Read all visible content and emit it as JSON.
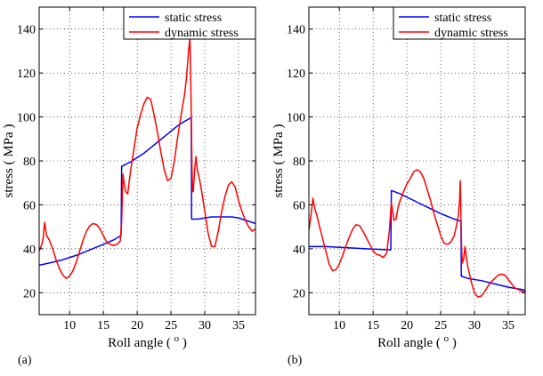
{
  "panels": [
    {
      "label": "(a)"
    },
    {
      "label": "(b)"
    }
  ],
  "chart_data": [
    {
      "type": "line",
      "panel": "(a)",
      "xlabel": "Roll angle ( o )",
      "ylabel": "stress ( MPa )",
      "xlim": [
        5.5,
        37.5
      ],
      "ylim": [
        10,
        150
      ],
      "xticks": [
        10,
        15,
        20,
        25,
        30,
        35
      ],
      "yticks": [
        20,
        40,
        60,
        80,
        100,
        120,
        140
      ],
      "grid": true,
      "legend": "top-right",
      "series": [
        {
          "name": "static stress",
          "color": "#0000ff",
          "x": [
            5.5,
            7,
            9,
            11,
            13,
            15,
            16.5,
            17.6,
            17.62,
            17.7,
            19,
            20,
            21,
            22,
            23,
            24,
            25,
            26,
            27,
            27.9,
            28.0,
            28.05,
            29,
            30,
            31,
            32,
            33,
            34,
            35,
            36,
            37,
            37.5
          ],
          "y": [
            32.5,
            33.5,
            35,
            37,
            39.5,
            42,
            44,
            46,
            46,
            77.5,
            79.5,
            81.5,
            83.5,
            86,
            88.5,
            91,
            93.5,
            96,
            98,
            99.5,
            99.5,
            53.5,
            53.5,
            54,
            54.5,
            54.5,
            54.5,
            54.5,
            54,
            53,
            52,
            51.5
          ]
        },
        {
          "name": "dynamic stress",
          "color": "#ff0000",
          "x": [
            5.5,
            5.9,
            6.1,
            6.3,
            6.6,
            7.0,
            7.5,
            8.0,
            8.5,
            9.0,
            9.5,
            10.0,
            10.5,
            11.0,
            11.5,
            12.0,
            12.5,
            13.0,
            13.5,
            14.0,
            14.5,
            15.0,
            15.5,
            16.0,
            16.5,
            17.0,
            17.5,
            17.7,
            17.9,
            18.1,
            18.3,
            18.6,
            19.0,
            19.5,
            20.0,
            20.5,
            21.0,
            21.5,
            22.0,
            22.5,
            23.0,
            23.5,
            24.0,
            24.5,
            25.0,
            25.5,
            26.0,
            26.5,
            27.0,
            27.3,
            27.6,
            27.8,
            27.9,
            28.0,
            28.1,
            28.2,
            28.3,
            28.5,
            28.7,
            28.9,
            29.2,
            29.5,
            30.0,
            30.5,
            31.0,
            31.5,
            32.0,
            32.5,
            33.0,
            33.5,
            34.0,
            34.5,
            35.0,
            35.5,
            36.0,
            36.5,
            37.0,
            37.5
          ],
          "y": [
            39,
            42,
            45,
            52,
            46,
            44,
            40,
            35,
            31,
            28,
            26.5,
            27.5,
            30,
            34,
            39,
            44,
            48,
            50.5,
            51.5,
            51,
            49,
            46,
            43,
            42,
            41.5,
            42,
            43.5,
            52,
            74,
            69,
            66,
            65,
            75,
            85,
            95,
            101,
            106,
            109,
            108,
            101,
            93,
            84,
            76,
            71,
            72,
            80,
            91,
            101,
            110,
            118,
            130,
            136,
            121,
            103,
            78,
            66,
            66,
            76,
            82,
            76,
            72,
            67,
            57,
            47,
            41,
            41,
            48,
            57,
            64,
            69,
            70.5,
            68,
            62,
            57,
            53,
            50,
            48,
            49
          ]
        }
      ]
    },
    {
      "type": "line",
      "panel": "(b)",
      "xlabel": "Roll angle ( o )",
      "ylabel": "stress ( MPa )",
      "xlim": [
        5.5,
        37.5
      ],
      "ylim": [
        10,
        150
      ],
      "xticks": [
        10,
        15,
        20,
        25,
        30,
        35
      ],
      "yticks": [
        20,
        40,
        60,
        80,
        100,
        120,
        140
      ],
      "grid": true,
      "legend": "top-right",
      "series": [
        {
          "name": "static stress",
          "color": "#0000ff",
          "x": [
            5.5,
            8,
            11,
            14,
            17.6,
            17.62,
            17.7,
            19,
            21,
            23,
            25,
            27,
            28.0,
            28.05,
            29,
            31,
            33,
            35,
            37,
            37.5
          ],
          "y": [
            41,
            41,
            40.5,
            40,
            39.5,
            39.5,
            66.5,
            65,
            62,
            59,
            56,
            53.5,
            52.5,
            27.5,
            26.5,
            25.5,
            24,
            22.5,
            21.5,
            21
          ]
        },
        {
          "name": "dynamic stress",
          "color": "#ff0000",
          "x": [
            5.5,
            5.8,
            6.1,
            6.4,
            6.7,
            7.0,
            7.5,
            8.0,
            8.5,
            9.0,
            9.5,
            10.0,
            10.5,
            11.0,
            11.5,
            12.0,
            12.5,
            13.0,
            13.5,
            14.0,
            14.5,
            15.0,
            15.5,
            16.0,
            16.5,
            17.0,
            17.4,
            17.7,
            17.9,
            18.1,
            18.4,
            18.7,
            19.0,
            19.5,
            20.0,
            20.5,
            21.0,
            21.5,
            22.0,
            22.5,
            23.0,
            23.5,
            24.0,
            24.5,
            25.0,
            25.5,
            26.0,
            26.5,
            27.0,
            27.3,
            27.6,
            27.8,
            27.9,
            28.0,
            28.1,
            28.2,
            28.4,
            28.6,
            28.8,
            29.0,
            29.3,
            29.6,
            30.0,
            30.5,
            31.0,
            31.5,
            32.0,
            32.5,
            33.0,
            33.5,
            34.0,
            34.5,
            35.0,
            35.5,
            36.0,
            36.5,
            37.0,
            37.5
          ],
          "y": [
            48.5,
            55,
            63,
            58,
            55,
            51,
            45,
            39,
            33,
            30,
            30.5,
            33,
            37,
            41.5,
            45.5,
            49,
            51,
            50.5,
            48,
            45,
            42,
            39,
            37.5,
            37,
            36,
            38,
            48,
            61,
            57,
            53,
            53.5,
            59,
            62,
            66,
            69.5,
            72,
            75,
            76,
            75,
            72,
            67,
            62,
            56,
            51,
            46,
            42.5,
            42,
            43,
            46,
            50,
            55,
            62,
            71,
            54,
            40,
            33.5,
            35.5,
            41,
            36,
            32,
            28,
            24,
            20,
            18,
            18.5,
            20.5,
            23,
            25,
            26.5,
            28,
            28.5,
            28,
            26,
            24,
            22,
            21.5,
            20.5,
            20.5
          ]
        }
      ]
    }
  ]
}
